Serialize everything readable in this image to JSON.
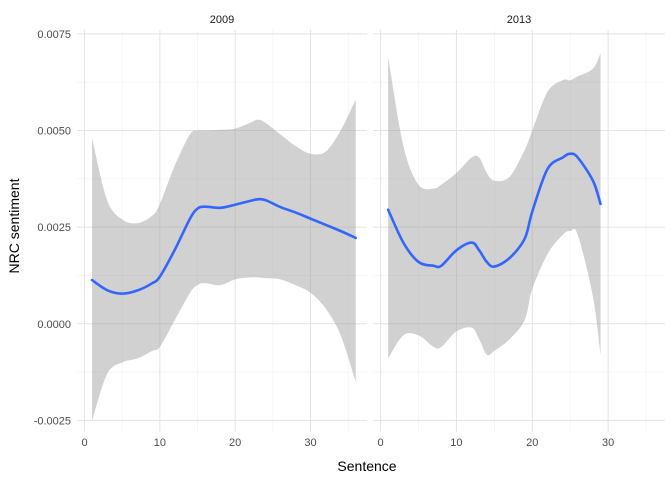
{
  "chart_data": {
    "type": "line",
    "xlabel": "Sentence",
    "ylabel": "NRC sentiment",
    "xlim": [
      -1,
      37.5
    ],
    "ylim": [
      -0.0028,
      0.0076
    ],
    "x_ticks": [
      0,
      10,
      20,
      30
    ],
    "x_tick_labels": [
      "0",
      "10",
      "20",
      "30"
    ],
    "y_ticks": [
      -0.0025,
      0,
      0.0025,
      0.005,
      0.0075
    ],
    "y_tick_labels": [
      "-0.0025",
      "0.0000",
      "0.0025",
      "0.0050",
      "0.0075"
    ],
    "grid": true,
    "panels": [
      {
        "label": "2009",
        "series": [
          {
            "kind": "smooth-with-ribbon",
            "x": [
              1,
              3,
              5,
              7,
              9,
              10,
              12,
              14,
              15,
              16,
              18,
              20,
              22,
              23,
              24,
              26,
              28,
              30,
              32,
              34,
              36
            ],
            "y": [
              0.00113,
              0.00087,
              0.00078,
              0.00086,
              0.00105,
              0.00122,
              0.00192,
              0.00272,
              0.00298,
              0.00303,
              0.003,
              0.00308,
              0.00318,
              0.00322,
              0.0032,
              0.00302,
              0.00288,
              0.00272,
              0.00256,
              0.0024,
              0.00222
            ],
            "upper": [
              0.0048,
              0.0032,
              0.0027,
              0.0026,
              0.0028,
              0.0031,
              0.0041,
              0.0049,
              0.005,
              0.005,
              0.00502,
              0.00505,
              0.0052,
              0.00528,
              0.0052,
              0.0049,
              0.0046,
              0.0044,
              0.00445,
              0.005,
              0.0058
            ],
            "lower": [
              -0.0025,
              -0.0013,
              -0.001,
              -0.0009,
              -0.0007,
              -0.0006,
              0.0001,
              0.0008,
              0.001,
              0.00105,
              0.001,
              0.00115,
              0.0012,
              0.0012,
              0.00118,
              0.00115,
              0.001,
              0.0008,
              0.0004,
              -0.0003,
              -0.0015
            ],
            "color": "#3366FF",
            "ribbon_color": "#999999"
          }
        ]
      },
      {
        "label": "2013",
        "series": [
          {
            "kind": "smooth-with-ribbon",
            "x": [
              1,
              3,
              5,
              7,
              8,
              10,
              12,
              13,
              14,
              15,
              17,
              19,
              20,
              22,
              24,
              25,
              26,
              28,
              29
            ],
            "y": [
              0.00295,
              0.0021,
              0.0016,
              0.0015,
              0.0015,
              0.0019,
              0.0021,
              0.0019,
              0.0016,
              0.00148,
              0.0017,
              0.0022,
              0.0029,
              0.004,
              0.0043,
              0.0044,
              0.0043,
              0.0037,
              0.0031
            ],
            "upper": [
              0.0069,
              0.0046,
              0.0036,
              0.0035,
              0.0036,
              0.0039,
              0.0043,
              0.0043,
              0.0039,
              0.0037,
              0.0038,
              0.0045,
              0.005,
              0.006,
              0.0063,
              0.0063,
              0.0064,
              0.0066,
              0.007
            ],
            "lower": [
              -0.0009,
              -0.0003,
              -0.0003,
              -0.0006,
              -0.0006,
              -0.0002,
              -0.0001,
              -0.0004,
              -0.0008,
              -0.0007,
              -0.0004,
              0.0001,
              0.0009,
              0.0018,
              0.0023,
              0.0024,
              0.0023,
              0.0007,
              -0.0008
            ],
            "color": "#3366FF",
            "ribbon_color": "#999999"
          }
        ]
      }
    ]
  }
}
